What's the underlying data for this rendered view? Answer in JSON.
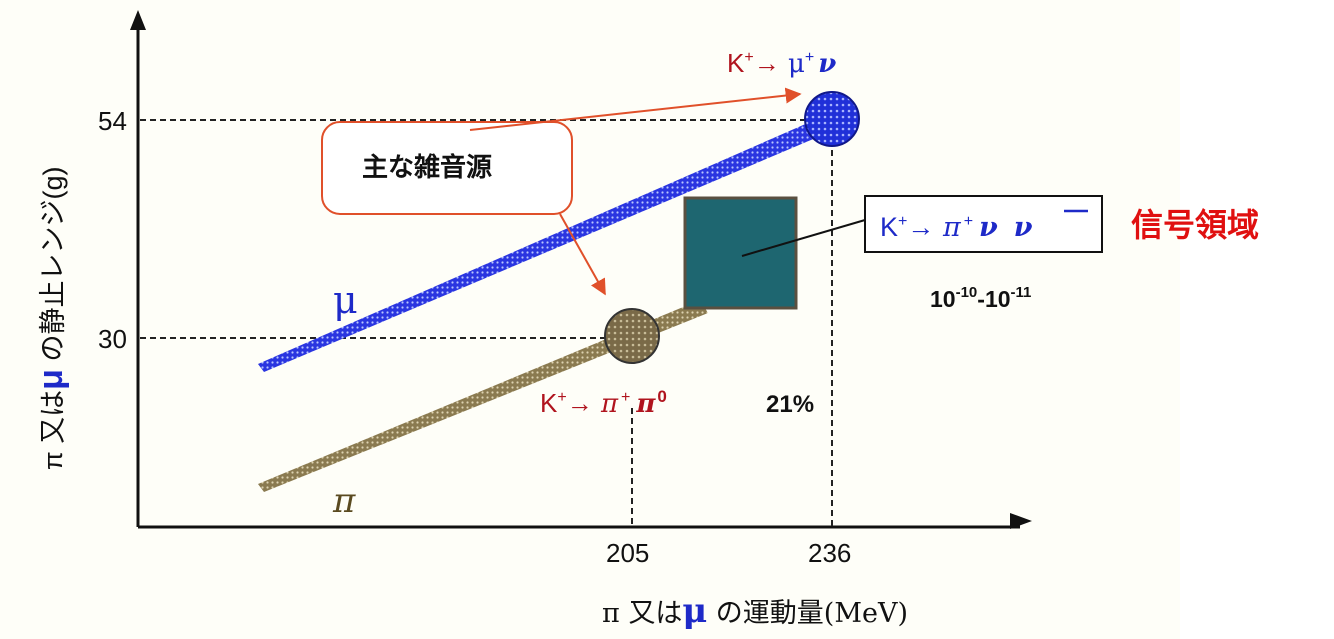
{
  "axes": {
    "y_label_prefix": "π 又は",
    "y_label_mu": "μ",
    "y_label_suffix": " の静止レンジ(g)",
    "x_label_prefix": "π 又は",
    "x_label_mu": "μ",
    "x_label_suffix": " の運動量(MeV)",
    "y_ticks": [
      "54",
      "30"
    ],
    "x_ticks": [
      "205",
      "236"
    ]
  },
  "lines": {
    "mu_label": "μ",
    "pi_label": "π"
  },
  "callout": {
    "noise_label": "主な雑音源"
  },
  "decays": {
    "mu_nu": {
      "K": "K",
      "sup_plus": "+",
      "arrow": "→",
      "mu": " μ",
      "mu_plus": "+",
      "nu": "ν"
    },
    "pi_pi0": {
      "K": "K",
      "sup_plus": "+",
      "arrow": "→",
      "pi": " π",
      "pi_plus": "+",
      "pi0": "π",
      "zero": "0"
    },
    "pi_nunu": {
      "K": "K",
      "sup_plus": "+",
      "arrow": "→",
      "pi": " π",
      "pi_plus": "+",
      "nu": "ν",
      "nubar": "ν"
    }
  },
  "annotations": {
    "signal_region": "信号領域",
    "branching_big": "10",
    "exp1": "-10",
    "dash": "-",
    "branching_big2": "10",
    "exp2": "-11",
    "pct_21": "21%"
  },
  "colors": {
    "mu_line": "#2a35e0",
    "pi_line": "#8a7a50",
    "signal_box": "#1e6670",
    "decay_text": "#b0141e",
    "greek_blue": "#1e2ac8",
    "signal_text": "#e01010",
    "callout_border": "#e0502a"
  }
}
